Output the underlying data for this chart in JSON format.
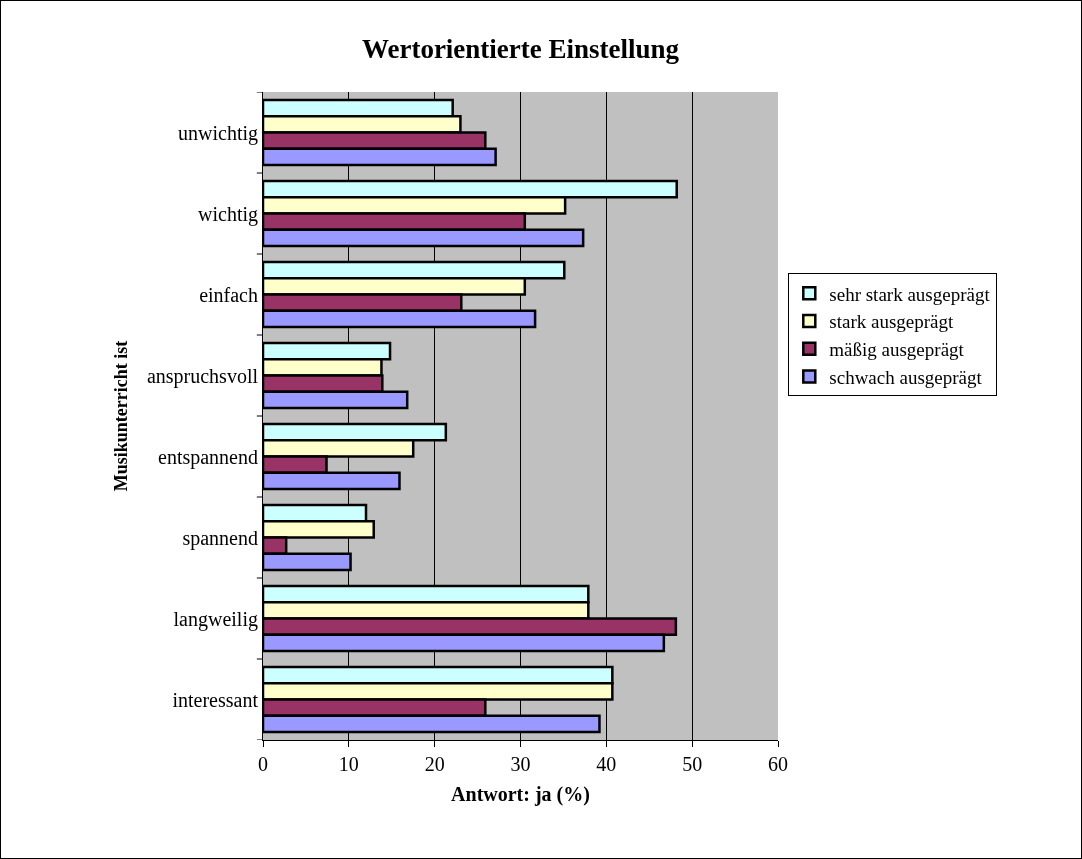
{
  "chart_data": {
    "type": "bar",
    "orientation": "horizontal",
    "title": "Wertorientierte Einstellung",
    "xlabel": "Antwort: ja (%)",
    "ylabel": "Musikunterricht ist",
    "categories": [
      "unwichtig",
      "wichtig",
      "einfach",
      "anspruchsvoll",
      "entspannend",
      "spannend",
      "langweilig",
      "interessant"
    ],
    "series": [
      {
        "name": "sehr stark ausgeprägt",
        "color": "#ccffff",
        "values": [
          22.1,
          48.2,
          35.1,
          14.8,
          21.3,
          12.0,
          37.9,
          40.7
        ]
      },
      {
        "name": "stark ausgeprägt",
        "color": "#ffffcc",
        "values": [
          23.0,
          35.2,
          30.5,
          13.8,
          17.5,
          12.9,
          37.9,
          40.7
        ]
      },
      {
        "name": "mäßig ausgeprägt",
        "color": "#993366",
        "values": [
          25.9,
          30.5,
          23.1,
          13.9,
          7.4,
          2.7,
          48.1,
          25.9
        ]
      },
      {
        "name": "schwach ausgeprägt",
        "color": "#9999ff",
        "values": [
          27.1,
          37.3,
          31.7,
          16.8,
          15.9,
          10.2,
          46.7,
          39.2
        ]
      }
    ],
    "xlim": [
      0,
      60
    ],
    "xticks": [
      0,
      10,
      20,
      30,
      40,
      50,
      60
    ],
    "grid": "x",
    "legend": "right"
  }
}
